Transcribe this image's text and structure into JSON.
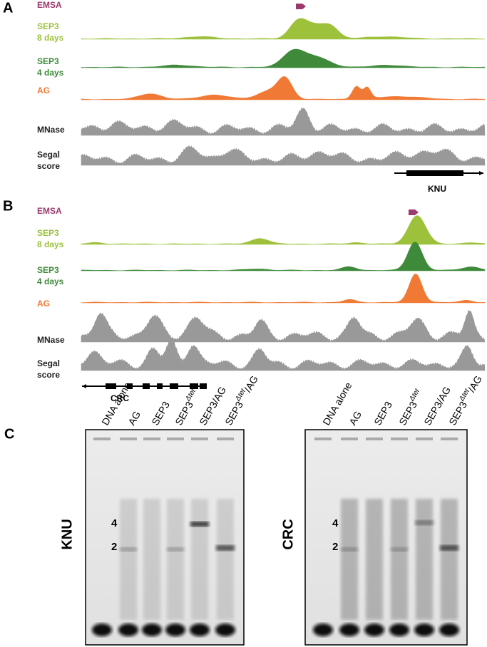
{
  "panels": [
    {
      "label": "A",
      "gene": "KNU",
      "tracks": [
        {
          "lines": [
            "EMSA"
          ]
        },
        {
          "lines": [
            "SEP3",
            "8 days"
          ]
        },
        {
          "lines": [
            "SEP3",
            "4 days"
          ]
        },
        {
          "lines": [
            "AG"
          ]
        },
        {
          "lines": [
            "MNase"
          ]
        },
        {
          "lines": [
            "Segal",
            "score"
          ]
        }
      ]
    },
    {
      "label": "B",
      "gene": "CRC",
      "tracks": [
        {
          "lines": [
            "EMSA"
          ]
        },
        {
          "lines": [
            "SEP3",
            "8 days"
          ]
        },
        {
          "lines": [
            "SEP3",
            "4 days"
          ]
        },
        {
          "lines": [
            "AG"
          ]
        },
        {
          "lines": [
            "MNase"
          ]
        },
        {
          "lines": [
            "Segal",
            "score"
          ]
        }
      ]
    }
  ],
  "gel_panel": {
    "label": "C",
    "gels": [
      {
        "name": "KNU",
        "bands": [
          "4",
          "2"
        ],
        "lanes": [
          {
            "text": "DNA alone"
          },
          {
            "text": "AG"
          },
          {
            "text": "SEP3"
          },
          {
            "text": "SEP3",
            "sup": "Δtet"
          },
          {
            "text": "SEP3/AG"
          },
          {
            "text": "SEP3",
            "sup": "Δtet",
            "after": "/AG"
          }
        ]
      },
      {
        "name": "CRC",
        "bands": [
          "4",
          "2"
        ],
        "lanes": [
          {
            "text": "DNA alone"
          },
          {
            "text": "AG"
          },
          {
            "text": "SEP3"
          },
          {
            "text": "SEP3",
            "sup": "Δtet"
          },
          {
            "text": "SEP3/AG"
          },
          {
            "text": "SEP3",
            "sup": "Δtet",
            "after": "/AG"
          }
        ]
      }
    ]
  }
}
